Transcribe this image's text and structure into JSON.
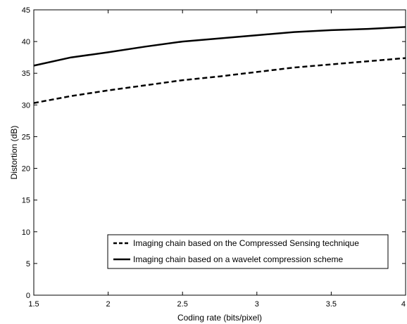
{
  "chart_data": {
    "type": "line",
    "title": "",
    "xlabel": "Coding rate (bits/pixel)",
    "ylabel": "Distortion (dB)",
    "xlim": [
      1.5,
      4
    ],
    "ylim": [
      0,
      45
    ],
    "xticks": [
      1.5,
      2,
      2.5,
      3,
      3.5,
      4
    ],
    "xtick_labels": [
      "1.5",
      "2",
      "2.5",
      "3",
      "3.5",
      "4"
    ],
    "yticks": [
      0,
      5,
      10,
      15,
      20,
      25,
      30,
      35,
      40,
      45
    ],
    "ytick_labels": [
      "0",
      "5",
      "10",
      "15",
      "20",
      "25",
      "30",
      "35",
      "40",
      "45"
    ],
    "grid": false,
    "legend_position": "lower-right",
    "series": [
      {
        "name": "Imaging chain based on the Compressed Sensing technique",
        "style": "dashed",
        "color": "#000000",
        "x": [
          1.5,
          1.75,
          2.0,
          2.25,
          2.5,
          2.75,
          3.0,
          3.25,
          3.5,
          3.75,
          4.0
        ],
        "y": [
          30.3,
          31.4,
          32.3,
          33.1,
          33.9,
          34.5,
          35.2,
          35.9,
          36.4,
          36.9,
          37.4
        ]
      },
      {
        "name": "Imaging chain based on a wavelet compression scheme",
        "style": "solid",
        "color": "#000000",
        "x": [
          1.5,
          1.75,
          2.0,
          2.25,
          2.5,
          2.75,
          3.0,
          3.25,
          3.5,
          3.75,
          4.0
        ],
        "y": [
          36.2,
          37.5,
          38.3,
          39.2,
          40.0,
          40.5,
          41.0,
          41.5,
          41.8,
          42.0,
          42.3
        ]
      }
    ]
  }
}
